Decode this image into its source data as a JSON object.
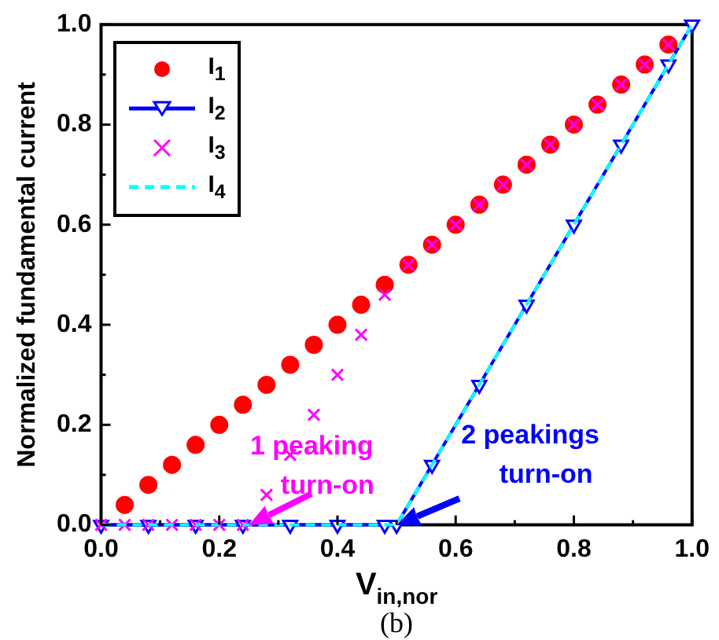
{
  "chart_data": {
    "type": "scatter",
    "xlabel": "V$_{in,nor}$",
    "ylabel": "Normalized fundamental current",
    "xlim": [
      0,
      1
    ],
    "ylim": [
      0,
      1
    ],
    "xticks": [
      {
        "value": 0,
        "label": "0.0"
      },
      {
        "value": 0.2,
        "label": "0.2"
      },
      {
        "value": 0.4,
        "label": "0.4"
      },
      {
        "value": 0.6,
        "label": "0.6"
      },
      {
        "value": 0.8,
        "label": "0.8"
      },
      {
        "value": 1,
        "label": "1.0"
      }
    ],
    "yticks": [
      {
        "value": 0,
        "label": "0.0"
      },
      {
        "value": 0.2,
        "label": "0.2"
      },
      {
        "value": 0.4,
        "label": "0.4"
      },
      {
        "value": 0.6,
        "label": "0.6"
      },
      {
        "value": 0.8,
        "label": "0.8"
      },
      {
        "value": 1,
        "label": "1.0"
      }
    ],
    "grid": false,
    "legend": "top left",
    "series": [
      {
        "name": "I$_{1}$",
        "marker": "circle",
        "color": "#ff0000",
        "x": [
          0.04,
          0.08,
          0.12,
          0.16,
          0.2,
          0.24,
          0.28,
          0.32,
          0.36,
          0.4,
          0.44,
          0.48,
          0.52,
          0.56,
          0.6,
          0.64,
          0.68,
          0.72,
          0.76,
          0.8,
          0.84,
          0.88,
          0.92,
          0.96
        ],
        "values": [
          0.04,
          0.08,
          0.12,
          0.16,
          0.2,
          0.24,
          0.28,
          0.32,
          0.36,
          0.4,
          0.44,
          0.48,
          0.52,
          0.56,
          0.6,
          0.64,
          0.68,
          0.72,
          0.76,
          0.8,
          0.84,
          0.88,
          0.92,
          0.96
        ]
      },
      {
        "name": "I$_{2}$",
        "type": "line",
        "marker": "triangle",
        "line_style": "solid",
        "color": "#0000ff",
        "x": [
          0,
          0.08,
          0.16,
          0.24,
          0.32,
          0.4,
          0.48,
          0.5,
          0.56,
          0.64,
          0.72,
          0.8,
          0.88,
          0.96,
          1
        ],
        "values": [
          0,
          0,
          0,
          0,
          0,
          0,
          0,
          0,
          0.12,
          0.28,
          0.44,
          0.6,
          0.76,
          0.92,
          1
        ]
      },
      {
        "name": "I$_{3}$",
        "marker": "cross",
        "color": "#ff00ff",
        "x": [
          0,
          0.04,
          0.08,
          0.12,
          0.16,
          0.2,
          0.24,
          0.28,
          0.32,
          0.36,
          0.4,
          0.44,
          0.48,
          0.52,
          0.56,
          0.6,
          0.64,
          0.68,
          0.72,
          0.76,
          0.8,
          0.84,
          0.88,
          0.92,
          0.96
        ],
        "values": [
          0,
          0,
          0,
          0,
          0,
          0,
          0,
          0.06,
          0.14,
          0.22,
          0.3,
          0.38,
          0.46,
          0.52,
          0.56,
          0.6,
          0.64,
          0.68,
          0.72,
          0.76,
          0.8,
          0.84,
          0.88,
          0.92,
          0.96
        ]
      },
      {
        "name": "I$_{4}$",
        "type": "line",
        "marker": "none",
        "line_style": "dashed",
        "color": "#00ffff",
        "x": [
          0,
          0.5,
          1
        ],
        "values": [
          0,
          0,
          1
        ]
      }
    ],
    "annotations": [
      {
        "text": "1 peaking\nturn-on",
        "x": 0.25,
        "y": 0
      },
      {
        "text": "2 peakings\nturn-on",
        "x": 0.5,
        "y": 0
      },
      "(b)"
    ]
  }
}
